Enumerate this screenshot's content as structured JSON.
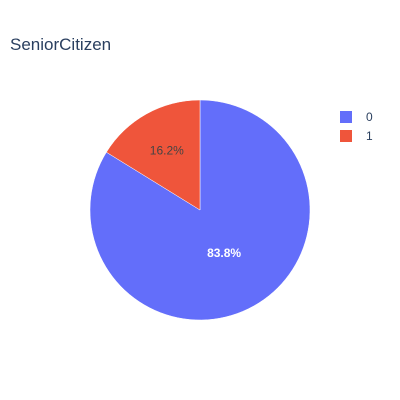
{
  "chart_data": {
    "type": "pie",
    "title": "SeniorCitizen",
    "labels": [
      "0",
      "1"
    ],
    "values": [
      83.8,
      16.2
    ],
    "text_labels": [
      "83.8%",
      "16.2%"
    ],
    "colors": [
      "#636efa",
      "#ef553b"
    ],
    "label_colors": [
      "#ffffff",
      "#444444"
    ],
    "legend_position": "top-right"
  }
}
